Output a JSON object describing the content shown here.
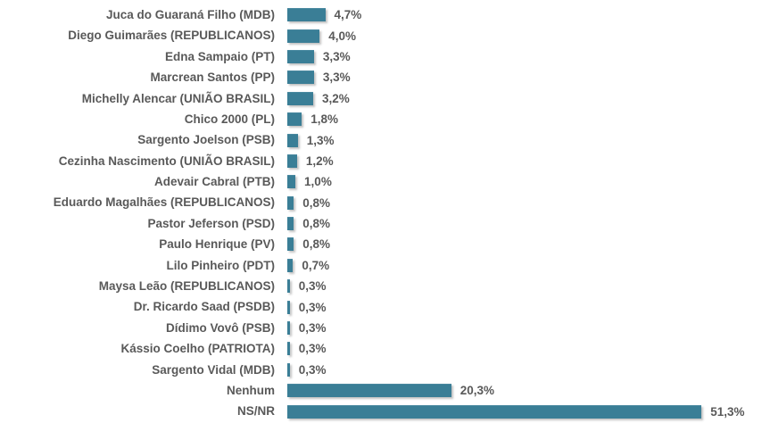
{
  "chart_data": {
    "type": "bar",
    "orientation": "horizontal",
    "title": "",
    "xlabel": "",
    "ylabel": "",
    "xlim": [
      0,
      55
    ],
    "grid": false,
    "legend": false,
    "bar_color": "#3A7E96",
    "label_color": "#595959",
    "categories": [
      "Juca do Guaraná Filho (MDB)",
      "Diego Guimarães (REPUBLICANOS)",
      "Edna Sampaio (PT)",
      "Marcrean Santos (PP)",
      "Michelly Alencar (UNIÃO BRASIL)",
      "Chico 2000 (PL)",
      "Sargento Joelson (PSB)",
      "Cezinha Nascimento (UNIÃO BRASIL)",
      "Adevair Cabral (PTB)",
      "Eduardo Magalhães (REPUBLICANOS)",
      "Pastor Jeferson (PSD)",
      "Paulo Henrique (PV)",
      "Lilo Pinheiro (PDT)",
      "Maysa Leão (REPUBLICANOS)",
      "Dr. Ricardo Saad (PSDB)",
      "Dídimo Vovô (PSB)",
      "Kássio Coelho (PATRIOTA)",
      "Sargento Vidal (MDB)",
      "Nenhum",
      "NS/NR"
    ],
    "values": [
      4.7,
      4.0,
      3.3,
      3.3,
      3.2,
      1.8,
      1.3,
      1.2,
      1.0,
      0.8,
      0.8,
      0.8,
      0.7,
      0.3,
      0.3,
      0.3,
      0.3,
      0.3,
      20.3,
      51.3
    ],
    "value_labels": [
      "4,7%",
      "4,0%",
      "3,3%",
      "3,3%",
      "3,2%",
      "1,8%",
      "1,3%",
      "1,2%",
      "1,0%",
      "0,8%",
      "0,8%",
      "0,8%",
      "0,7%",
      "0,3%",
      "0,3%",
      "0,3%",
      "0,3%",
      "0,3%",
      "20,3%",
      "51,3%"
    ]
  }
}
